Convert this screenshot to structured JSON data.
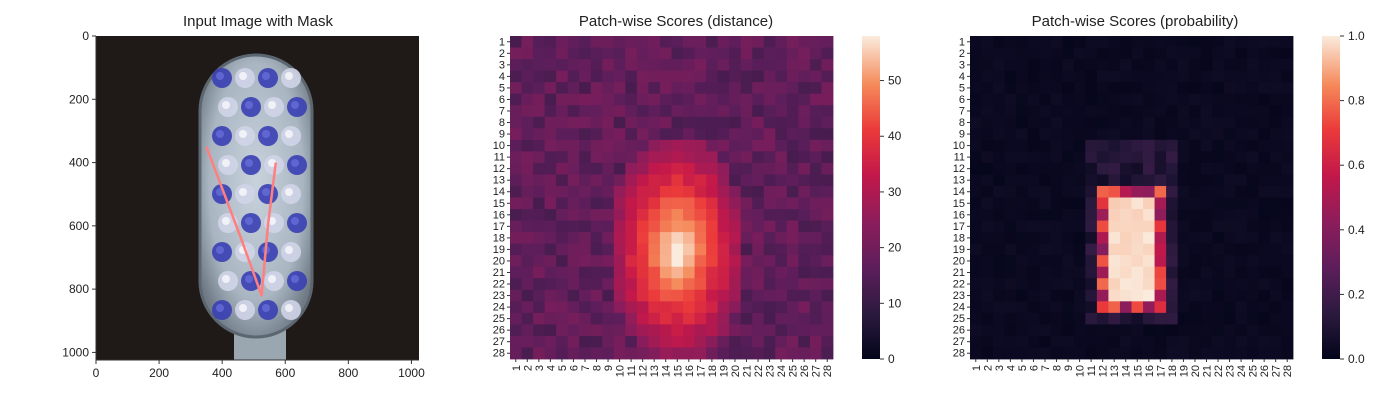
{
  "chart_data": [
    {
      "type": "image",
      "title": "Input Image with Mask",
      "xticks": [
        0,
        200,
        400,
        600,
        800,
        1000
      ],
      "yticks": [
        0,
        200,
        400,
        600,
        800,
        1000
      ],
      "xlim": [
        0,
        1024
      ],
      "ylim": [
        1024,
        0
      ],
      "mask_polyline": {
        "x": [
          350,
          460,
          525,
          545,
          570
        ],
        "y": [
          350,
          640,
          820,
          600,
          400
        ],
        "color": "#ff7f7f"
      }
    },
    {
      "type": "heatmap",
      "title": "Patch-wise Scores (distance)",
      "grid_size": 28,
      "tick_labels": [
        "1",
        "2",
        "3",
        "4",
        "5",
        "6",
        "7",
        "8",
        "9",
        "10",
        "11",
        "12",
        "13",
        "14",
        "15",
        "16",
        "17",
        "18",
        "19",
        "20",
        "21",
        "22",
        "23",
        "24",
        "25",
        "26",
        "27",
        "28"
      ],
      "colorbar": {
        "min": 0,
        "max": 58,
        "ticks": [
          0,
          10,
          20,
          30,
          40,
          50
        ]
      },
      "colormap": "rocket",
      "background_level": 17,
      "hot_region": {
        "rows": [
          13,
          25
        ],
        "cols": [
          12,
          18
        ],
        "peak_row": 20,
        "peak_col": 15,
        "peak_value": 58
      }
    },
    {
      "type": "heatmap",
      "title": "Patch-wise Scores (probability)",
      "grid_size": 28,
      "tick_labels": [
        "1",
        "2",
        "3",
        "4",
        "5",
        "6",
        "7",
        "8",
        "9",
        "10",
        "11",
        "12",
        "13",
        "14",
        "15",
        "16",
        "17",
        "18",
        "19",
        "20",
        "21",
        "22",
        "23",
        "24",
        "25",
        "26",
        "27",
        "28"
      ],
      "colorbar": {
        "min": 0.0,
        "max": 1.0,
        "ticks": [
          "0.0",
          "0.2",
          "0.4",
          "0.6",
          "0.8",
          "1.0"
        ]
      },
      "colormap": "rocket",
      "background_level": 0.0,
      "hot_region": {
        "rows": [
          14,
          24
        ],
        "cols": [
          12,
          17
        ],
        "peak_value": 1.0
      }
    }
  ]
}
